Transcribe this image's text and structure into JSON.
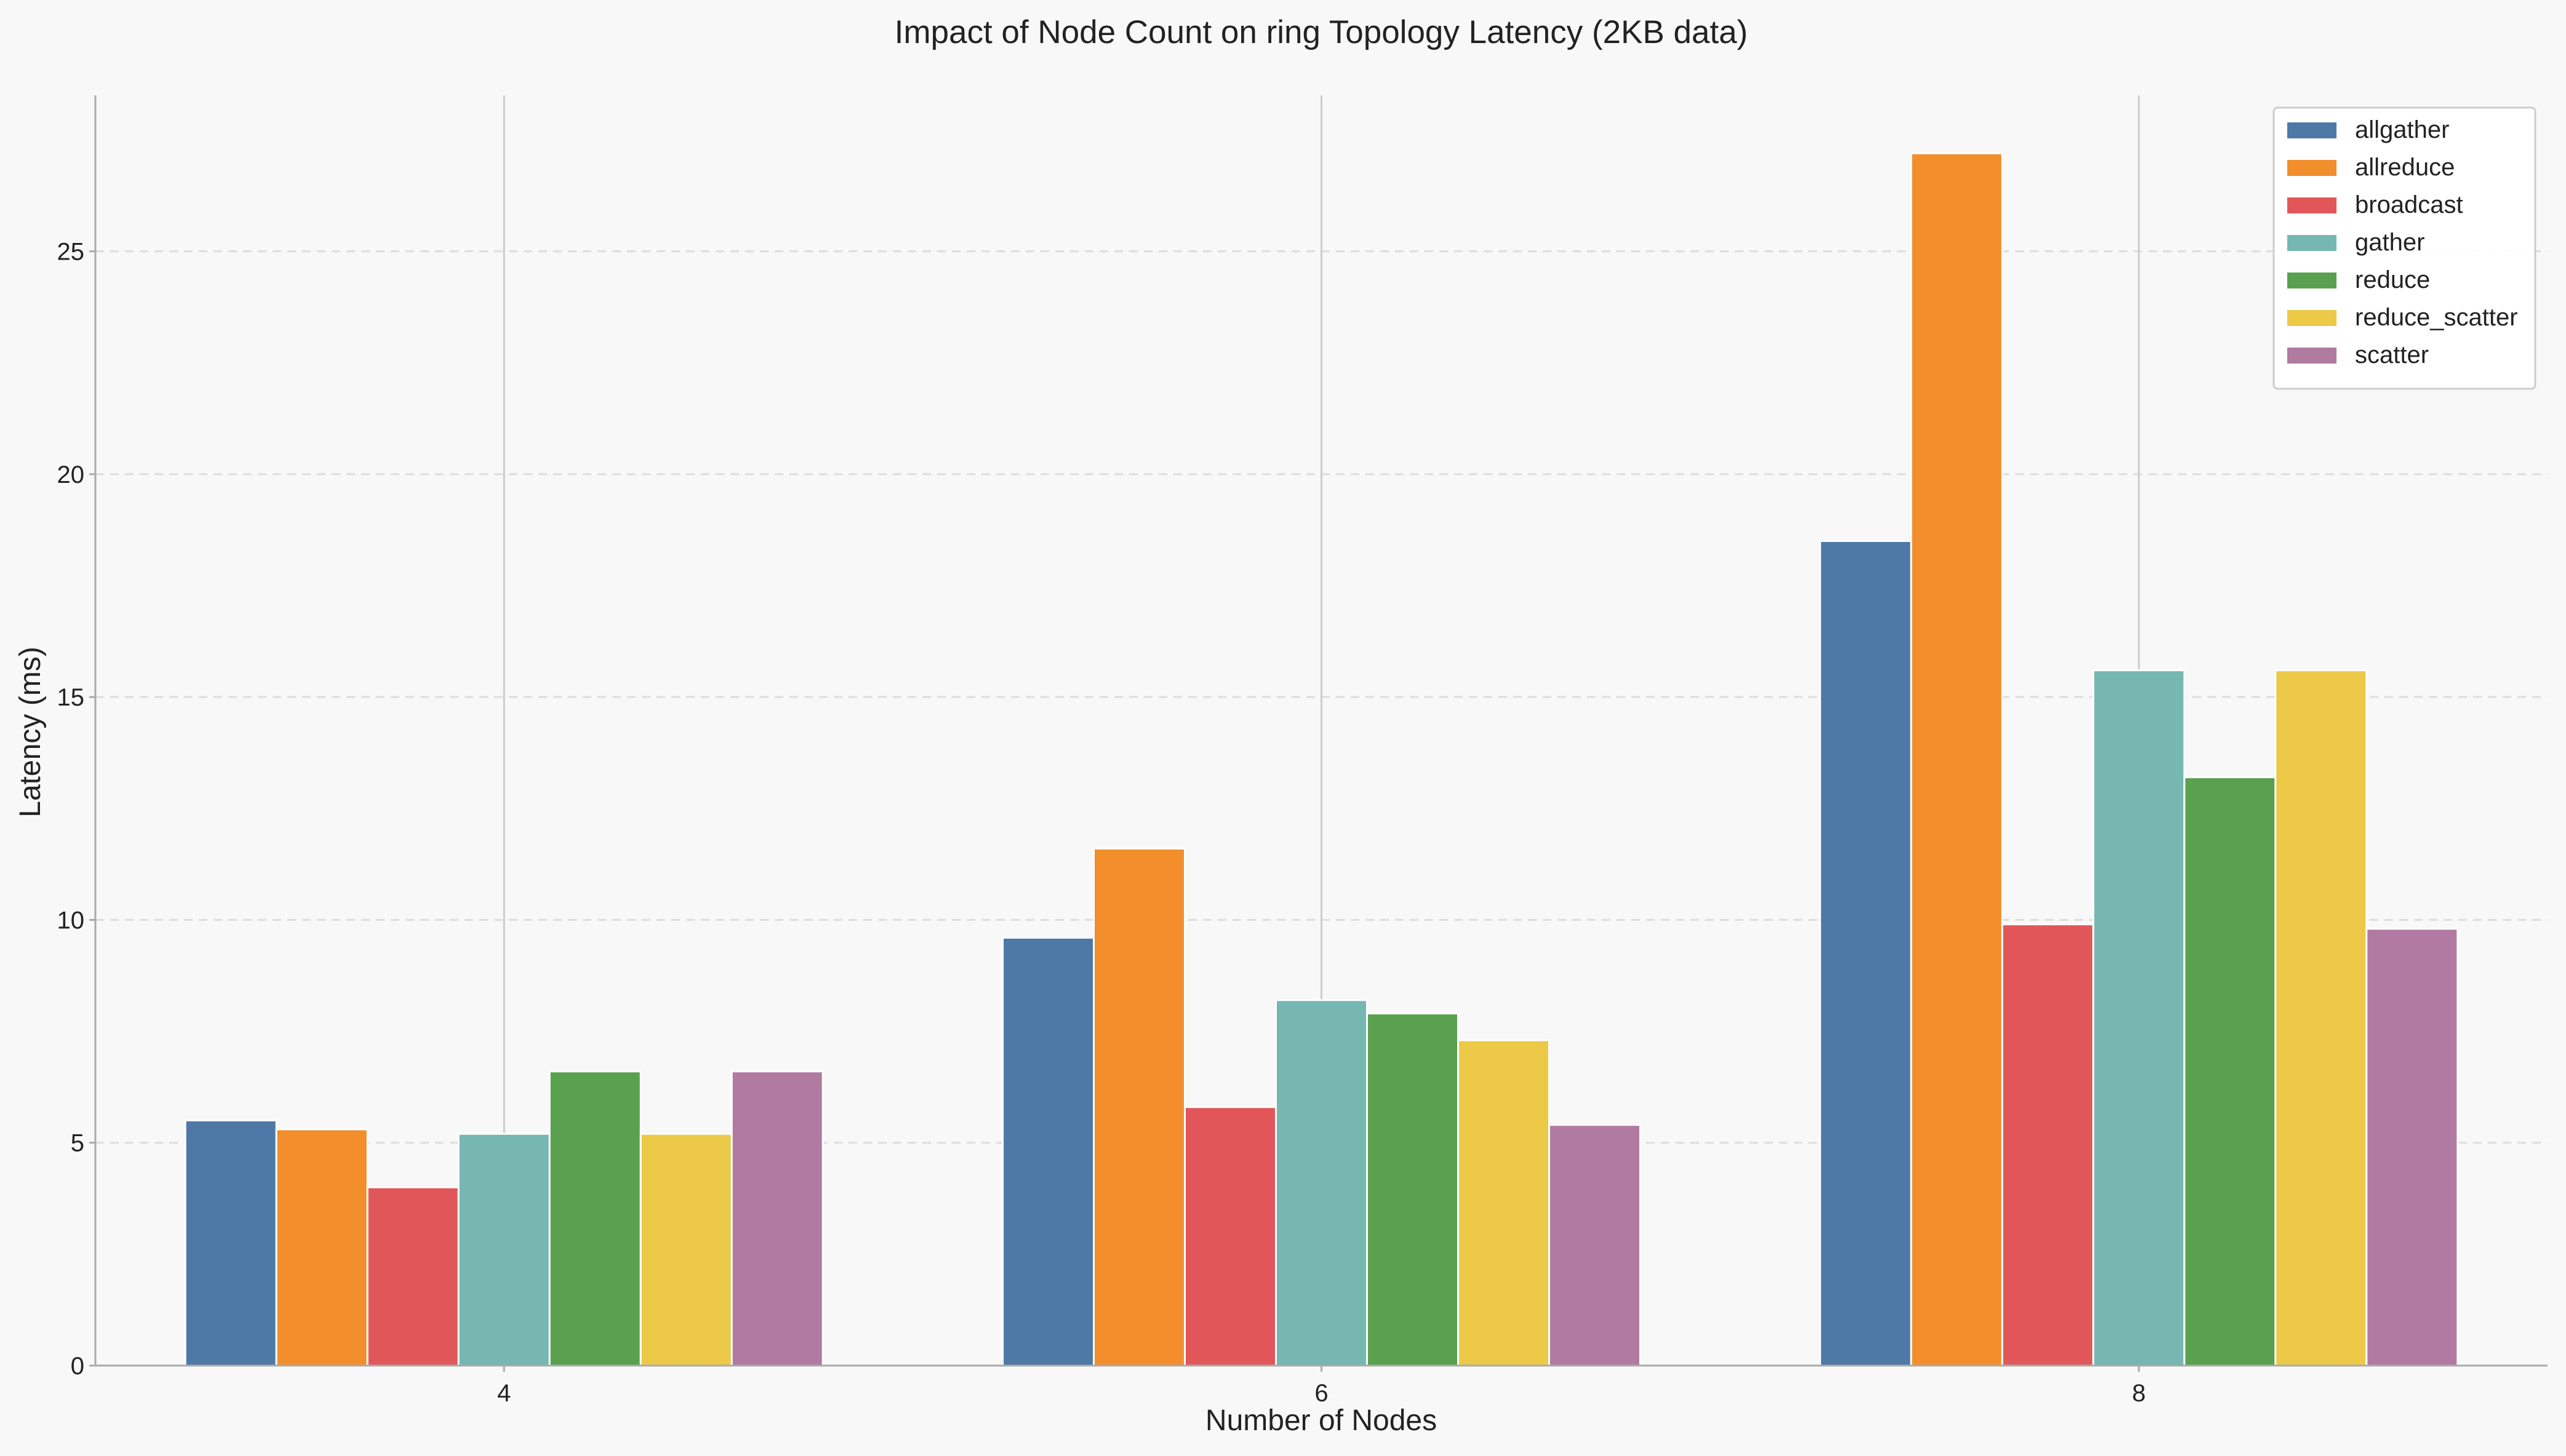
{
  "chart_data": {
    "type": "bar",
    "title": "Impact of Node Count on ring Topology Latency (2KB data)",
    "xlabel": "Number of Nodes",
    "ylabel": "Latency (ms)",
    "categories": [
      "4",
      "6",
      "8"
    ],
    "ylim": [
      0,
      28.5
    ],
    "yticks": [
      0,
      5,
      10,
      15,
      20,
      25
    ],
    "grid": "y-dashed",
    "legend_position": "top-right",
    "series": [
      {
        "name": "allgather",
        "color": "#4e79a7",
        "values": [
          5.5,
          9.6,
          18.5
        ]
      },
      {
        "name": "allreduce",
        "color": "#f28e2b",
        "values": [
          5.3,
          11.6,
          27.2
        ]
      },
      {
        "name": "broadcast",
        "color": "#e15759",
        "values": [
          4.0,
          5.8,
          9.9
        ]
      },
      {
        "name": "gather",
        "color": "#76b7b2",
        "values": [
          5.2,
          8.2,
          15.6
        ]
      },
      {
        "name": "reduce",
        "color": "#59a14f",
        "values": [
          6.6,
          7.9,
          13.2
        ]
      },
      {
        "name": "reduce_scatter",
        "color": "#edc948",
        "values": [
          5.2,
          7.3,
          15.6
        ]
      },
      {
        "name": "scatter",
        "color": "#b07aa1",
        "values": [
          6.6,
          5.4,
          9.8
        ]
      }
    ]
  }
}
